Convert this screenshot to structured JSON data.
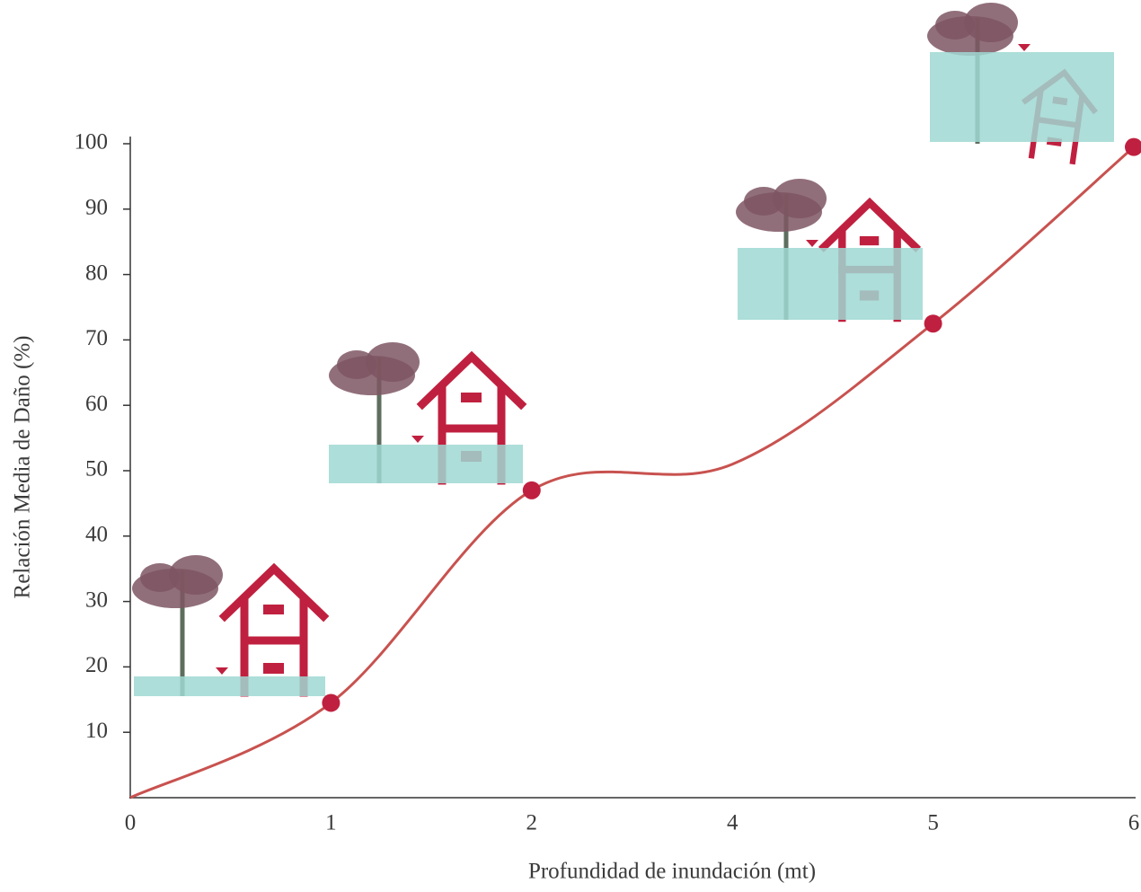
{
  "chart_data": {
    "type": "line",
    "x_label": "Profundidad de inundación (mt)",
    "y_label": "Relación Media de Daño (%)",
    "categories": [
      "0",
      "1",
      "2",
      "4",
      "5",
      "6"
    ],
    "values": [
      0,
      14.5,
      47,
      51,
      72.5,
      99.5
    ],
    "markers": [
      false,
      true,
      true,
      false,
      true,
      true
    ],
    "color": "#c8524f",
    "marker_color": "#c0203f",
    "ylim": [
      0,
      100
    ],
    "yticks": [
      10,
      20,
      30,
      40,
      50,
      60,
      70,
      80,
      90,
      100
    ],
    "grid": false
  }
}
